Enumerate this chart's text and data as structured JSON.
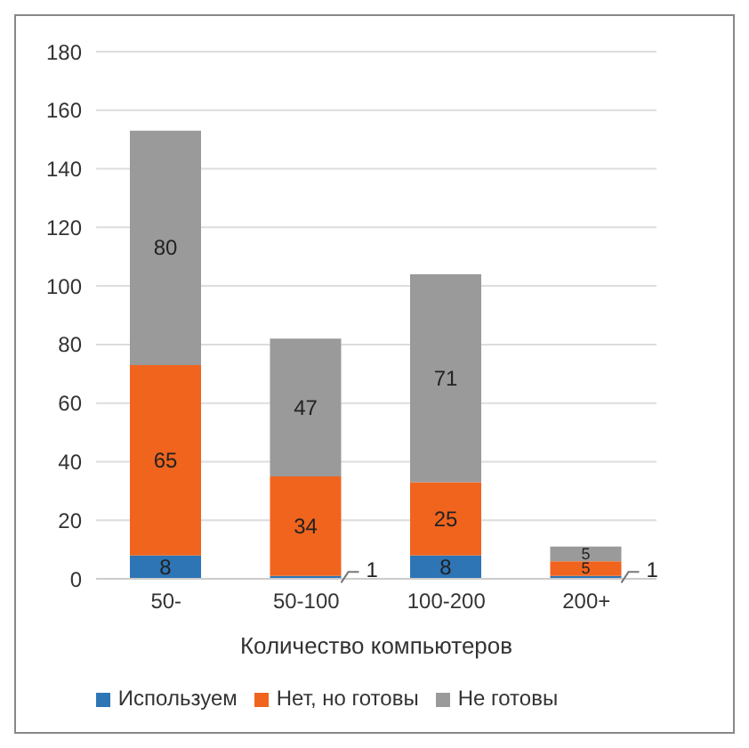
{
  "chart_data": {
    "type": "bar",
    "stacked": true,
    "xlabel": "Количество компьютеров",
    "categories": [
      "50-",
      "50-100",
      "100-200",
      "200+"
    ],
    "series": [
      {
        "name": "Используем",
        "color": "#2e75b6",
        "values": [
          8,
          1,
          8,
          1
        ]
      },
      {
        "name": "Нет, но готовы",
        "color": "#f0641e",
        "values": [
          65,
          34,
          25,
          5
        ]
      },
      {
        "name": "Не готовы",
        "color": "#9a9a9a",
        "values": [
          80,
          47,
          71,
          5
        ]
      }
    ],
    "ylim": [
      0,
      180
    ],
    "yticks": [
      0,
      20,
      40,
      60,
      80,
      100,
      120,
      140,
      160,
      180
    ],
    "grid": "y",
    "legend": "bottom",
    "data_labels": true
  }
}
